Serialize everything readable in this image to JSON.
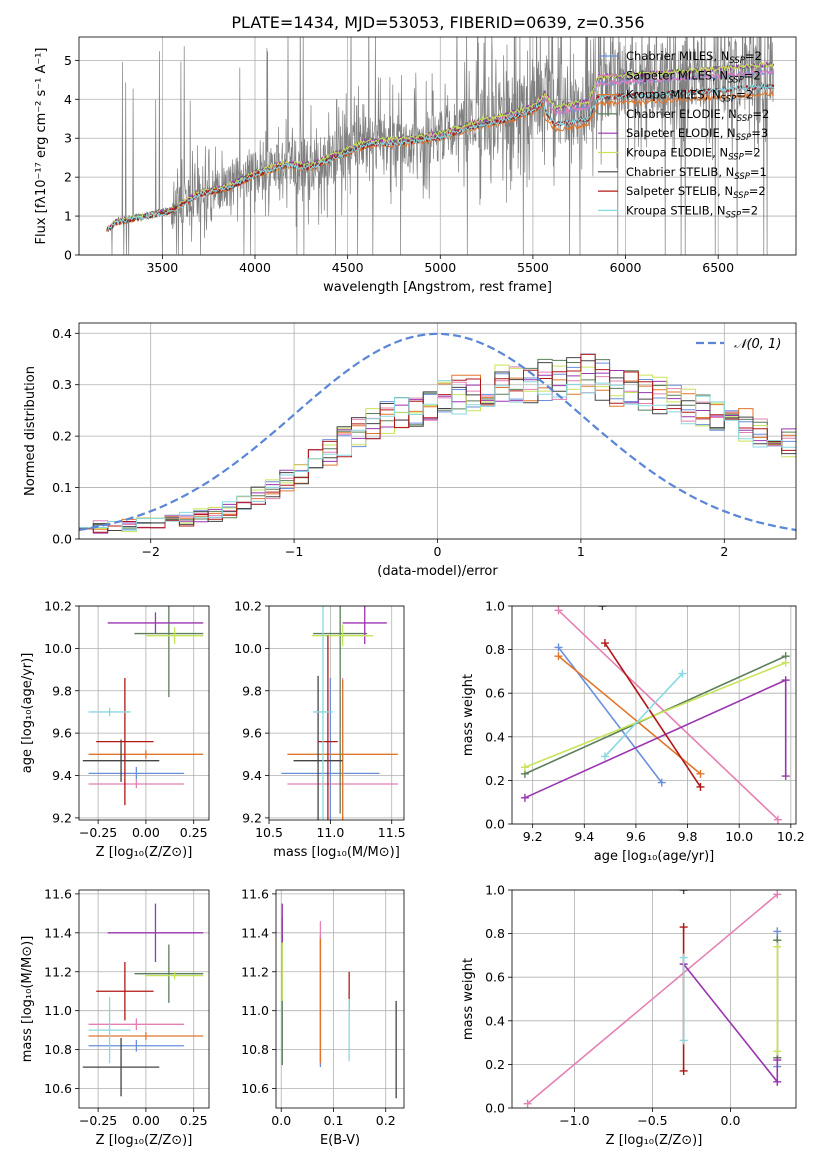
{
  "figure_title": "PLATE=1434, MJD=53053, FIBERID=0639, z=0.356",
  "colors": {
    "Chabrier MILES": "#6a8fdc",
    "Salpeter MILES": "#e480b3",
    "Kroupa MILES": "#e0762c",
    "Chabrier ELODIE": "#5a7f5a",
    "Salpeter ELODIE": "#9a35b0",
    "Kroupa ELODIE": "#c7e35a",
    "Chabrier STELIB": "#444444",
    "Salpeter STELIB": "#b01818",
    "Kroupa STELIB": "#88d8e0",
    "data": "#808080",
    "normal": "#5b86d8"
  },
  "legend_models": [
    {
      "key": "Chabrier MILES",
      "main": "Chabrier MILES, N",
      "sub": "SSP",
      "tail": "=2"
    },
    {
      "key": "Salpeter MILES",
      "main": "Salpeter MILES, N",
      "sub": "SSP",
      "tail": "=2"
    },
    {
      "key": "Kroupa MILES",
      "main": "Kroupa MILES, N",
      "sub": "SSP",
      "tail": "=2"
    },
    {
      "key": "Chabrier ELODIE",
      "main": "Chabrier ELODIE, N",
      "sub": "SSP",
      "tail": "=2"
    },
    {
      "key": "Salpeter ELODIE",
      "main": "Salpeter ELODIE, N",
      "sub": "SSP",
      "tail": "=3"
    },
    {
      "key": "Kroupa ELODIE",
      "main": "Kroupa ELODIE, N",
      "sub": "SSP",
      "tail": "=2"
    },
    {
      "key": "Chabrier STELIB",
      "main": "Chabrier STELIB, N",
      "sub": "SSP",
      "tail": "=1"
    },
    {
      "key": "Salpeter STELIB",
      "main": "Salpeter STELIB, N",
      "sub": "SSP",
      "tail": "=2"
    },
    {
      "key": "Kroupa STELIB",
      "main": "Kroupa STELIB, N",
      "sub": "SSP",
      "tail": "=2"
    }
  ],
  "chart_data": [
    {
      "id": "spectrum",
      "type": "line",
      "ylabel": "Flux [fλ10⁻¹⁷ erg cm⁻² s⁻¹ A⁻¹]",
      "xlabel": "wavelength [Angstrom, rest frame]",
      "xlim": [
        3050,
        6920
      ],
      "ylim": [
        0,
        5.6
      ],
      "xticks": [
        3500,
        4000,
        4500,
        5000,
        5500,
        6000,
        6500
      ],
      "yticks": [
        0,
        1,
        2,
        3,
        4,
        5
      ],
      "continuum_nodes": [
        {
          "x": 3200,
          "y": 0.65
        },
        {
          "x": 3250,
          "y": 0.85
        },
        {
          "x": 3400,
          "y": 1.0
        },
        {
          "x": 3550,
          "y": 1.15
        },
        {
          "x": 3700,
          "y": 1.6
        },
        {
          "x": 3850,
          "y": 1.75
        },
        {
          "x": 4000,
          "y": 2.1
        },
        {
          "x": 4150,
          "y": 2.35
        },
        {
          "x": 4300,
          "y": 2.3
        },
        {
          "x": 4450,
          "y": 2.6
        },
        {
          "x": 4600,
          "y": 2.9
        },
        {
          "x": 4800,
          "y": 2.95
        },
        {
          "x": 5000,
          "y": 3.1
        },
        {
          "x": 5200,
          "y": 3.4
        },
        {
          "x": 5350,
          "y": 3.55
        },
        {
          "x": 5500,
          "y": 3.8
        },
        {
          "x": 5560,
          "y": 4.05
        },
        {
          "x": 5620,
          "y": 3.65
        },
        {
          "x": 5800,
          "y": 3.8
        },
        {
          "x": 5850,
          "y": 4.4
        },
        {
          "x": 6200,
          "y": 4.5
        },
        {
          "x": 6500,
          "y": 4.6
        },
        {
          "x": 6750,
          "y": 4.7
        },
        {
          "x": 6800,
          "y": 4.7
        }
      ],
      "group_scale": {
        "MILES": 1.0,
        "ELODIE": 1.04,
        "STELIB": 0.92
      },
      "kroupa_miles_scale": 0.88,
      "spectrum_range": [
        3200,
        6800
      ]
    },
    {
      "id": "residuals",
      "type": "line",
      "ylabel": "Normed distribution",
      "xlabel": "(data-model)/error",
      "xlim": [
        -2.5,
        2.5
      ],
      "ylim": [
        0,
        0.42
      ],
      "xticks": [
        -2,
        -1,
        0,
        1,
        2
      ],
      "yticks": [
        0.0,
        0.1,
        0.2,
        0.3,
        0.4
      ],
      "normal_legend": "𝒩(0, 1)",
      "bin_range": [
        -2.5,
        2.5
      ],
      "bins": 50,
      "profile": [
        {
          "x": -2.5,
          "y": 0.02
        },
        {
          "x": -2.0,
          "y": 0.03
        },
        {
          "x": -1.5,
          "y": 0.05
        },
        {
          "x": -1.0,
          "y": 0.12
        },
        {
          "x": -0.5,
          "y": 0.22
        },
        {
          "x": 0.0,
          "y": 0.27
        },
        {
          "x": 0.5,
          "y": 0.3
        },
        {
          "x": 1.0,
          "y": 0.32
        },
        {
          "x": 1.5,
          "y": 0.28
        },
        {
          "x": 2.0,
          "y": 0.24
        },
        {
          "x": 2.5,
          "y": 0.18
        }
      ]
    },
    {
      "id": "age_vs_Z",
      "type": "scatter",
      "xlabel": "Z [log₁₀(Z/Z⊙)]",
      "ylabel": "age  [log₁₀(age/yr)]",
      "xlim": [
        -0.35,
        0.33
      ],
      "ylim": [
        9.19,
        10.2
      ],
      "xticks": [
        -0.25,
        0.0,
        0.25
      ],
      "yticks": [
        9.2,
        9.4,
        9.6,
        9.8,
        10.0,
        10.2
      ],
      "points": [
        {
          "model": "Chabrier MILES",
          "x": -0.05,
          "xerr": 0.25,
          "y": 9.41,
          "yerr": 0.03
        },
        {
          "model": "Salpeter MILES",
          "x": -0.05,
          "xerr": 0.25,
          "y": 9.36,
          "yerr": 0.02
        },
        {
          "model": "Kroupa MILES",
          "x": 0.0,
          "xerr": 0.3,
          "y": 9.5,
          "yerr": 0.02
        },
        {
          "model": "Chabrier ELODIE",
          "x": 0.12,
          "xerr": 0.18,
          "y": 10.07,
          "yerr": 0.3
        },
        {
          "model": "Salpeter ELODIE",
          "x": 0.05,
          "xerr": 0.25,
          "y": 10.12,
          "yerr": 0.05
        },
        {
          "model": "Kroupa ELODIE",
          "x": 0.15,
          "xerr": 0.15,
          "y": 10.06,
          "yerr": 0.04
        },
        {
          "model": "Chabrier STELIB",
          "x": -0.13,
          "xerr": 0.2,
          "y": 9.47,
          "yerr": 0.1
        },
        {
          "model": "Salpeter STELIB",
          "x": -0.11,
          "xerr": 0.15,
          "y": 9.56,
          "yerr": 0.3
        },
        {
          "model": "Kroupa STELIB",
          "x": -0.19,
          "xerr": 0.11,
          "y": 9.7,
          "yerr": 0.02
        }
      ]
    },
    {
      "id": "age_vs_mass",
      "type": "scatter",
      "xlabel": "mass [log₁₀(M/M⊙)]",
      "ylabel": "",
      "xlim": [
        10.5,
        11.6
      ],
      "ylim": [
        9.19,
        10.2
      ],
      "xticks": [
        10.5,
        11.0,
        11.5
      ],
      "yticks": [
        9.2,
        9.4,
        9.6,
        9.8,
        10.0,
        10.2
      ],
      "points": [
        {
          "model": "Chabrier MILES",
          "x": 11.0,
          "xerr": 0.4,
          "y": 9.41,
          "yerr": 0.45
        },
        {
          "model": "Salpeter MILES",
          "x": 11.1,
          "xerr": 0.45,
          "y": 9.36,
          "yerr": 0.5
        },
        {
          "model": "Kroupa MILES",
          "x": 11.1,
          "xerr": 0.45,
          "y": 9.5,
          "yerr": 0.35
        },
        {
          "model": "Chabrier ELODIE",
          "x": 11.08,
          "xerr": 0.22,
          "y": 10.07,
          "yerr": 0.85
        },
        {
          "model": "Salpeter ELODIE",
          "x": 11.28,
          "xerr": 0.18,
          "y": 10.12,
          "yerr": 0.1
        },
        {
          "model": "Kroupa ELODIE",
          "x": 11.1,
          "xerr": 0.25,
          "y": 10.06,
          "yerr": 0.05
        },
        {
          "model": "Chabrier STELIB",
          "x": 10.9,
          "xerr": 0.2,
          "y": 9.47,
          "yerr": 0.4
        },
        {
          "model": "Salpeter STELIB",
          "x": 10.98,
          "xerr": 0.08,
          "y": 9.56,
          "yerr": 0.5
        },
        {
          "model": "Kroupa STELIB",
          "x": 10.94,
          "xerr": 0.08,
          "y": 9.7,
          "yerr": 0.6
        }
      ]
    },
    {
      "id": "weight_vs_age",
      "type": "line",
      "xlabel": "age  [log₁₀(age/yr)]",
      "ylabel": "mass weight",
      "xlim": [
        9.12,
        10.22
      ],
      "ylim": [
        0,
        1
      ],
      "xticks": [
        9.2,
        9.4,
        9.6,
        9.8,
        10.0,
        10.2
      ],
      "yticks": [
        0.0,
        0.2,
        0.4,
        0.6,
        0.8,
        1.0
      ],
      "series": [
        {
          "model": "Chabrier MILES",
          "points": [
            {
              "x": 9.3,
              "y": 0.81
            },
            {
              "x": 9.7,
              "y": 0.19
            }
          ]
        },
        {
          "model": "Salpeter MILES",
          "points": [
            {
              "x": 9.3,
              "y": 0.98
            },
            {
              "x": 10.15,
              "y": 0.02
            }
          ]
        },
        {
          "model": "Kroupa MILES",
          "points": [
            {
              "x": 9.3,
              "y": 0.77
            },
            {
              "x": 9.85,
              "y": 0.23
            }
          ]
        },
        {
          "model": "Chabrier ELODIE",
          "points": [
            {
              "x": 9.17,
              "y": 0.23
            },
            {
              "x": 10.18,
              "y": 0.77
            }
          ]
        },
        {
          "model": "Salpeter ELODIE",
          "points": [
            {
              "x": 9.17,
              "y": 0.12
            },
            {
              "x": 10.18,
              "y": 0.66
            },
            {
              "x": 10.18,
              "y": 0.22
            }
          ]
        },
        {
          "model": "Kroupa ELODIE",
          "points": [
            {
              "x": 9.17,
              "y": 0.26
            },
            {
              "x": 10.18,
              "y": 0.74
            }
          ]
        },
        {
          "model": "Chabrier STELIB",
          "points": [
            {
              "x": 9.47,
              "y": 1.0
            }
          ]
        },
        {
          "model": "Salpeter STELIB",
          "points": [
            {
              "x": 9.48,
              "y": 0.83
            },
            {
              "x": 9.85,
              "y": 0.17
            }
          ]
        },
        {
          "model": "Kroupa STELIB",
          "points": [
            {
              "x": 9.48,
              "y": 0.31
            },
            {
              "x": 9.78,
              "y": 0.69
            }
          ]
        }
      ]
    },
    {
      "id": "mass_vs_Z",
      "type": "scatter",
      "xlabel": "Z [log₁₀(Z/Z⊙)]",
      "ylabel": "mass [log₁₀(M/M⊙)]",
      "xlim": [
        -0.35,
        0.33
      ],
      "ylim": [
        10.5,
        11.62
      ],
      "xticks": [
        -0.25,
        0.0,
        0.25
      ],
      "yticks": [
        10.6,
        10.8,
        11.0,
        11.2,
        11.4,
        11.6
      ],
      "points": [
        {
          "model": "Chabrier MILES",
          "x": -0.05,
          "xerr": 0.25,
          "y": 10.82,
          "yerr": 0.03
        },
        {
          "model": "Salpeter MILES",
          "x": -0.05,
          "xerr": 0.25,
          "y": 10.93,
          "yerr": 0.03
        },
        {
          "model": "Kroupa MILES",
          "x": 0.0,
          "xerr": 0.3,
          "y": 10.87,
          "yerr": 0.02
        },
        {
          "model": "Chabrier ELODIE",
          "x": 0.12,
          "xerr": 0.18,
          "y": 11.19,
          "yerr": 0.15
        },
        {
          "model": "Salpeter ELODIE",
          "x": 0.05,
          "xerr": 0.25,
          "y": 11.4,
          "yerr": 0.15
        },
        {
          "model": "Kroupa ELODIE",
          "x": 0.15,
          "xerr": 0.15,
          "y": 11.18,
          "yerr": 0.02
        },
        {
          "model": "Chabrier STELIB",
          "x": -0.13,
          "xerr": 0.2,
          "y": 10.71,
          "yerr": 0.15
        },
        {
          "model": "Salpeter STELIB",
          "x": -0.11,
          "xerr": 0.15,
          "y": 11.1,
          "yerr": 0.15
        },
        {
          "model": "Kroupa STELIB",
          "x": -0.19,
          "xerr": 0.11,
          "y": 10.9,
          "yerr": 0.17
        }
      ]
    },
    {
      "id": "mass_vs_ebv",
      "type": "scatter",
      "xlabel": "E(B-V)",
      "ylabel": "",
      "xlim": [
        -0.01,
        0.235
      ],
      "ylim": [
        10.5,
        11.62
      ],
      "xticks": [
        0.0,
        0.1,
        0.2
      ],
      "yticks": [
        10.6,
        10.8,
        11.0,
        11.2,
        11.4,
        11.6
      ],
      "points": [
        {
          "model": "Chabrier MILES",
          "x": 0.075,
          "y": 11.05,
          "yerr": 0.34
        },
        {
          "model": "Salpeter MILES",
          "x": 0.075,
          "y": 11.1,
          "yerr": 0.36
        },
        {
          "model": "Kroupa MILES",
          "x": 0.075,
          "y": 11.05,
          "yerr": 0.32
        },
        {
          "model": "Chabrier ELODIE",
          "x": 0.002,
          "y": 11.1,
          "yerr": 0.38
        },
        {
          "model": "Salpeter ELODIE",
          "x": 0.002,
          "y": 11.45,
          "yerr": 0.1
        },
        {
          "model": "Kroupa ELODIE",
          "x": 0.002,
          "y": 11.2,
          "yerr": 0.15
        },
        {
          "model": "Chabrier STELIB",
          "x": 0.22,
          "y": 10.8,
          "yerr": 0.25
        },
        {
          "model": "Salpeter STELIB",
          "x": 0.13,
          "y": 11.1,
          "yerr": 0.1
        },
        {
          "model": "Kroupa STELIB",
          "x": 0.13,
          "y": 10.9,
          "yerr": 0.16
        }
      ]
    },
    {
      "id": "weight_vs_Z",
      "type": "line",
      "xlabel": "Z [log₁₀(Z/Z⊙)]",
      "ylabel": "mass weight",
      "xlim": [
        -1.4,
        0.42
      ],
      "ylim": [
        0,
        1
      ],
      "xticks": [
        -1.0,
        -0.5,
        0.0
      ],
      "yticks": [
        0.0,
        0.2,
        0.4,
        0.6,
        0.8,
        1.0
      ],
      "series": [
        {
          "model": "Chabrier MILES",
          "points": [
            {
              "x": 0.3,
              "y": 0.81
            },
            {
              "x": 0.3,
              "y": 0.19
            }
          ]
        },
        {
          "model": "Salpeter MILES",
          "points": [
            {
              "x": -1.3,
              "y": 0.02
            },
            {
              "x": 0.3,
              "y": 0.98
            }
          ]
        },
        {
          "model": "Kroupa MILES",
          "points": [
            {
              "x": 0.3,
              "y": 0.77
            },
            {
              "x": 0.3,
              "y": 0.23
            }
          ]
        },
        {
          "model": "Chabrier ELODIE",
          "points": [
            {
              "x": 0.3,
              "y": 0.77
            },
            {
              "x": 0.3,
              "y": 0.23
            }
          ]
        },
        {
          "model": "Salpeter ELODIE",
          "points": [
            {
              "x": -0.3,
              "y": 0.66
            },
            {
              "x": 0.3,
              "y": 0.12
            },
            {
              "x": 0.3,
              "y": 0.22
            }
          ]
        },
        {
          "model": "Kroupa ELODIE",
          "points": [
            {
              "x": 0.3,
              "y": 0.74
            },
            {
              "x": 0.3,
              "y": 0.26
            }
          ]
        },
        {
          "model": "Chabrier STELIB",
          "points": [
            {
              "x": -0.3,
              "y": 1.0
            }
          ]
        },
        {
          "model": "Salpeter STELIB",
          "points": [
            {
              "x": -0.3,
              "y": 0.83
            },
            {
              "x": -0.3,
              "y": 0.17
            }
          ]
        },
        {
          "model": "Kroupa STELIB",
          "points": [
            {
              "x": -0.3,
              "y": 0.69
            },
            {
              "x": -0.3,
              "y": 0.31
            }
          ]
        }
      ]
    }
  ]
}
